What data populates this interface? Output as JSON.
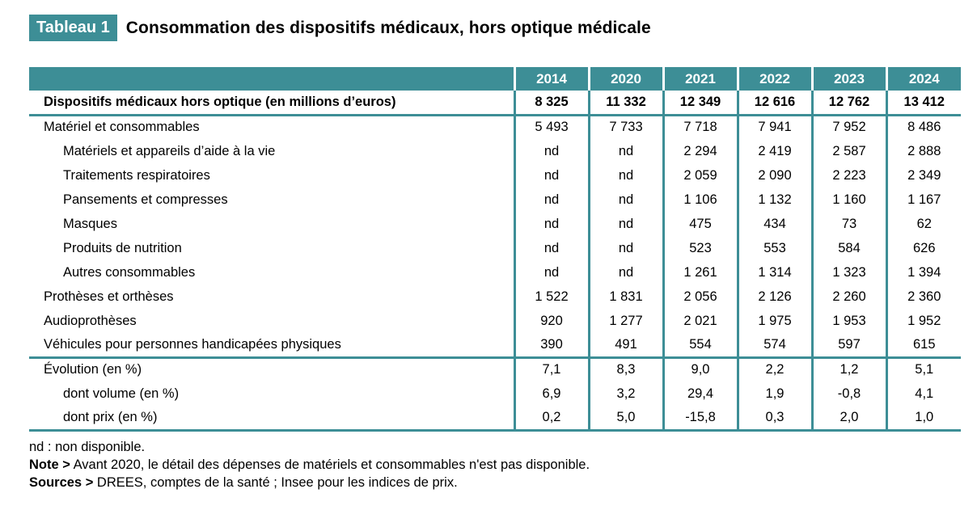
{
  "header": {
    "badge": "Tableau 1",
    "title": "Consommation des dispositifs médicaux, hors optique médicale"
  },
  "colors": {
    "accent_teal": "#3d8e96",
    "header_text": "#ffffff",
    "body_text": "#000000"
  },
  "chart_data": {
    "type": "table",
    "columns": [
      "2014",
      "2020",
      "2021",
      "2022",
      "2023",
      "2024"
    ],
    "rows": [
      {
        "label": "Dispositifs médicaux hors optique (en millions d’euros)",
        "indent": 0,
        "bold": true,
        "section_end": true,
        "values": [
          "8 325",
          "11 332",
          "12 349",
          "12 616",
          "12 762",
          "13 412"
        ]
      },
      {
        "label": "Matériel et consommables",
        "indent": 0,
        "bold": false,
        "section_end": false,
        "values": [
          "5 493",
          "7 733",
          "7 718",
          "7 941",
          "7 952",
          "8 486"
        ]
      },
      {
        "label": "Matériels et appareils d’aide à la vie",
        "indent": 1,
        "bold": false,
        "section_end": false,
        "values": [
          "nd",
          "nd",
          "2 294",
          "2 419",
          "2 587",
          "2 888"
        ]
      },
      {
        "label": "Traitements respiratoires",
        "indent": 1,
        "bold": false,
        "section_end": false,
        "values": [
          "nd",
          "nd",
          "2 059",
          "2 090",
          "2 223",
          "2 349"
        ]
      },
      {
        "label": "Pansements et compresses",
        "indent": 1,
        "bold": false,
        "section_end": false,
        "values": [
          "nd",
          "nd",
          "1 106",
          "1 132",
          "1 160",
          "1 167"
        ]
      },
      {
        "label": "Masques",
        "indent": 1,
        "bold": false,
        "section_end": false,
        "values": [
          "nd",
          "nd",
          "475",
          "434",
          "73",
          "62"
        ]
      },
      {
        "label": "Produits de nutrition",
        "indent": 1,
        "bold": false,
        "section_end": false,
        "values": [
          "nd",
          "nd",
          "523",
          "553",
          "584",
          "626"
        ]
      },
      {
        "label": "Autres consommables",
        "indent": 1,
        "bold": false,
        "section_end": false,
        "values": [
          "nd",
          "nd",
          "1 261",
          "1 314",
          "1 323",
          "1 394"
        ]
      },
      {
        "label": "Prothèses et orthèses",
        "indent": 0,
        "bold": false,
        "section_end": false,
        "values": [
          "1 522",
          "1 831",
          "2 056",
          "2 126",
          "2 260",
          "2 360"
        ]
      },
      {
        "label": "Audioprothèses",
        "indent": 0,
        "bold": false,
        "section_end": false,
        "values": [
          "920",
          "1 277",
          "2 021",
          "1 975",
          "1 953",
          "1 952"
        ]
      },
      {
        "label": "Véhicules pour personnes handicapées physiques",
        "indent": 0,
        "bold": false,
        "section_end": true,
        "values": [
          "390",
          "491",
          "554",
          "574",
          "597",
          "615"
        ]
      },
      {
        "label": "Évolution (en %)",
        "indent": 0,
        "bold": false,
        "section_end": false,
        "values": [
          "7,1",
          "8,3",
          "9,0",
          "2,2",
          "1,2",
          "5,1"
        ]
      },
      {
        "label": "dont volume (en %)",
        "indent": 1,
        "bold": false,
        "section_end": false,
        "values": [
          "6,9",
          "3,2",
          "29,4",
          "1,9",
          "-0,8",
          "4,1"
        ]
      },
      {
        "label": "dont prix (en %)",
        "indent": 1,
        "bold": false,
        "section_end": true,
        "values": [
          "0,2",
          "5,0",
          "-15,8",
          "0,3",
          "2,0",
          "1,0"
        ]
      }
    ]
  },
  "footnotes": [
    {
      "prefix": "",
      "text": "nd : non disponible."
    },
    {
      "prefix": "Note >",
      "text": " Avant 2020, le détail des dépenses de matériels et consommables n'est pas disponible."
    },
    {
      "prefix": "Sources >",
      "text": " DREES, comptes de la santé ; Insee pour les indices de prix."
    }
  ]
}
